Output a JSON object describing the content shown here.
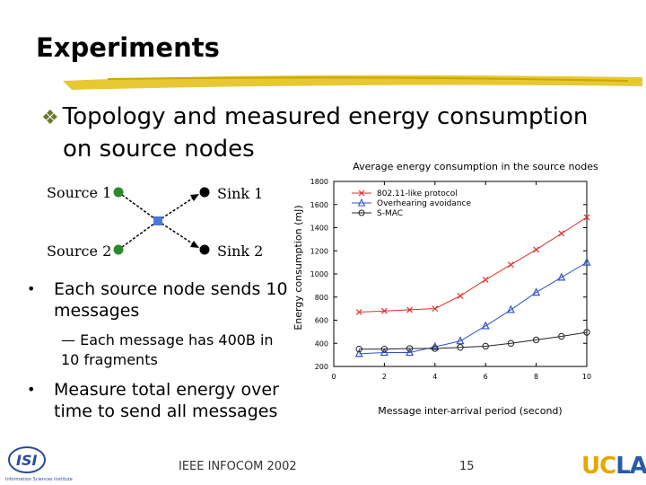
{
  "slide": {
    "title": "Experiments",
    "heading_line1": "Topology and measured energy consumption",
    "heading_line2": "on source nodes",
    "heading_bullet_icon": "diamond-cluster-bullet",
    "accent_color": "#e4c21e"
  },
  "topology": {
    "source1": "Source 1",
    "source2": "Source 2",
    "sink1": "Sink 1",
    "sink2": "Sink 2"
  },
  "bullets": {
    "b1": "Each source node sends 10 messages",
    "sub": "— Each message has 400B in 10 fragments",
    "b2": "Measure total energy over time to send all messages"
  },
  "footer": {
    "conference": "IEEE INFOCOM 2002",
    "page": "15",
    "logo_ucla_uc": "UC",
    "logo_ucla_la": "LA",
    "logo_isi": "ISI",
    "logo_isi_caption": "Information Sciences Institute"
  },
  "chart_data": {
    "type": "line",
    "title": "Average energy consumption in the source nodes",
    "xlabel": "Message inter-arrival period (second)",
    "ylabel": "Energy consumption (mJ)",
    "xlim": [
      0,
      10
    ],
    "ylim": [
      200,
      1800
    ],
    "xticks": [
      0,
      2,
      4,
      6,
      8,
      10
    ],
    "yticks": [
      200,
      400,
      600,
      800,
      1000,
      1200,
      1400,
      1600,
      1800
    ],
    "x": [
      1,
      2,
      3,
      4,
      5,
      6,
      7,
      8,
      9,
      10
    ],
    "legend_position": "top-left",
    "series": [
      {
        "name": "802.11-like protocol",
        "color": "#e0302a",
        "marker": "x",
        "values": [
          670,
          680,
          690,
          700,
          810,
          950,
          1080,
          1210,
          1350,
          1490
        ]
      },
      {
        "name": "Overhearing avoidance",
        "color": "#3050c8",
        "marker": "triangle",
        "values": [
          310,
          320,
          320,
          370,
          420,
          550,
          690,
          840,
          970,
          1100
        ]
      },
      {
        "name": "S-MAC",
        "color": "#222222",
        "marker": "circle",
        "values": [
          350,
          350,
          355,
          355,
          365,
          375,
          400,
          430,
          460,
          495
        ]
      }
    ]
  }
}
